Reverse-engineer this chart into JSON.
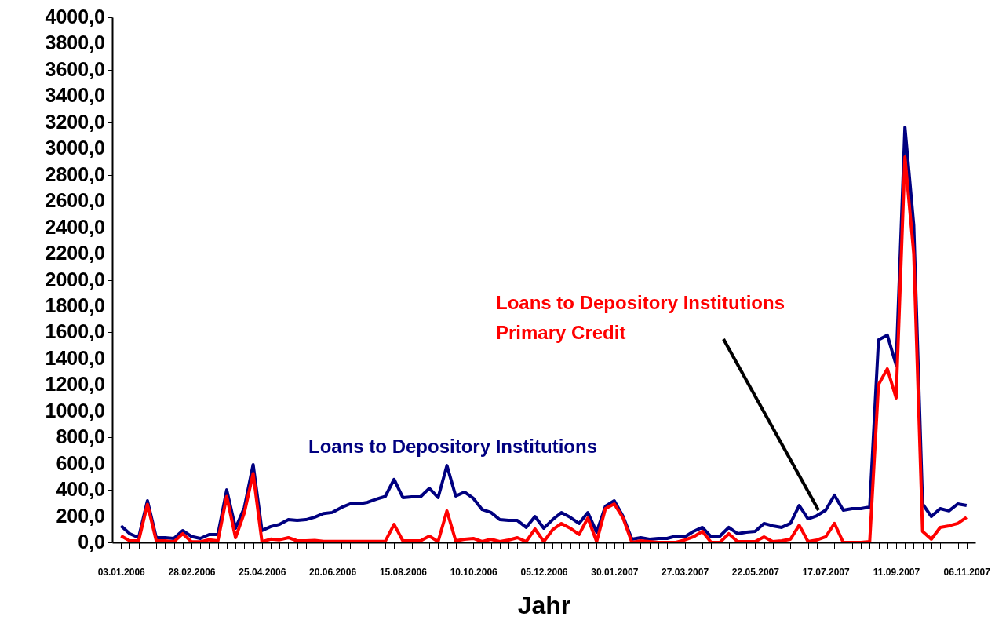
{
  "chart_data": {
    "type": "line",
    "xlabel": "Jahr",
    "legend": false,
    "grid": false,
    "categories": [
      "03.01.2006",
      null,
      null,
      null,
      null,
      null,
      null,
      null,
      "28.02.2006",
      null,
      null,
      null,
      null,
      null,
      null,
      null,
      "25.04.2006",
      null,
      null,
      null,
      null,
      null,
      null,
      null,
      "20.06.2006",
      null,
      null,
      null,
      null,
      null,
      null,
      null,
      "15.08.2006",
      null,
      null,
      null,
      null,
      null,
      null,
      null,
      "10.10.2006",
      null,
      null,
      null,
      null,
      null,
      null,
      null,
      "05.12.2006",
      null,
      null,
      null,
      null,
      null,
      null,
      null,
      "30.01.2007",
      null,
      null,
      null,
      null,
      null,
      null,
      null,
      "27.03.2007",
      null,
      null,
      null,
      null,
      null,
      null,
      null,
      "22.05.2007",
      null,
      null,
      null,
      null,
      null,
      null,
      null,
      "17.07.2007",
      null,
      null,
      null,
      null,
      null,
      null,
      null,
      "11.09.2007",
      null,
      null,
      null,
      null,
      null,
      null,
      null,
      "06.11.2007"
    ],
    "ylim": [
      0,
      4000
    ],
    "yticks": [
      {
        "value": 0,
        "label": "0,0"
      },
      {
        "value": 200,
        "label": "200,0"
      },
      {
        "value": 400,
        "label": "400,0"
      },
      {
        "value": 600,
        "label": "600,0"
      },
      {
        "value": 800,
        "label": "800,0"
      },
      {
        "value": 1000,
        "label": "1000,0"
      },
      {
        "value": 1200,
        "label": "1200,0"
      },
      {
        "value": 1400,
        "label": "1400,0"
      },
      {
        "value": 1600,
        "label": "1600,0"
      },
      {
        "value": 1800,
        "label": "1800,0"
      },
      {
        "value": 2000,
        "label": "2000,0"
      },
      {
        "value": 2200,
        "label": "2200,0"
      },
      {
        "value": 2400,
        "label": "2400,0"
      },
      {
        "value": 2600,
        "label": "2600,0"
      },
      {
        "value": 2800,
        "label": "2800,0"
      },
      {
        "value": 3000,
        "label": "3000,0"
      },
      {
        "value": 3200,
        "label": "3200,0"
      },
      {
        "value": 3400,
        "label": "3400,0"
      },
      {
        "value": 3600,
        "label": "3600,0"
      },
      {
        "value": 3800,
        "label": "3800,0"
      },
      {
        "value": 4000,
        "label": "4000,0"
      }
    ],
    "series": [
      {
        "name": "Loans to Depository Institutions",
        "color": "#000080",
        "values": [
          125,
          66,
          36,
          317,
          36,
          36,
          30,
          90,
          45,
          30,
          60,
          60,
          400,
          108,
          265,
          592,
          90,
          120,
          137,
          173,
          167,
          173,
          192,
          220,
          228,
          265,
          293,
          293,
          305,
          330,
          350,
          480,
          341,
          347,
          347,
          412,
          341,
          585,
          353,
          383,
          335,
          250,
          228,
          173,
          167,
          167,
          114,
          197,
          108,
          173,
          227,
          191,
          144,
          227,
          78,
          275,
          317,
          197,
          24,
          36,
          24,
          30,
          30,
          48,
          42,
          84,
          114,
          42,
          48,
          114,
          66,
          78,
          84,
          144,
          126,
          114,
          144,
          281,
          179,
          203,
          245,
          359,
          245,
          257,
          257,
          269,
          1543,
          1579,
          1351,
          3163,
          2416,
          293,
          197,
          257,
          240,
          293,
          281
        ]
      },
      {
        "name": "Loans to Depository Institutions\nPrimary Credit",
        "color": "#ff0000",
        "values": [
          50,
          12,
          12,
          290,
          12,
          12,
          5,
          66,
          5,
          5,
          20,
          12,
          350,
          36,
          225,
          525,
          5,
          25,
          20,
          36,
          12,
          12,
          15,
          8,
          8,
          8,
          8,
          8,
          8,
          8,
          8,
          137,
          12,
          12,
          12,
          48,
          6,
          240,
          12,
          24,
          30,
          6,
          24,
          6,
          18,
          36,
          6,
          102,
          6,
          96,
          144,
          108,
          60,
          185,
          6,
          257,
          293,
          185,
          0,
          12,
          6,
          0,
          0,
          0,
          18,
          42,
          84,
          0,
          0,
          66,
          6,
          6,
          6,
          42,
          6,
          12,
          24,
          131,
          6,
          18,
          42,
          144,
          0,
          0,
          0,
          6,
          1202,
          1322,
          1100,
          2936,
          2200,
          84,
          24,
          114,
          126,
          144,
          191
        ]
      }
    ]
  }
}
